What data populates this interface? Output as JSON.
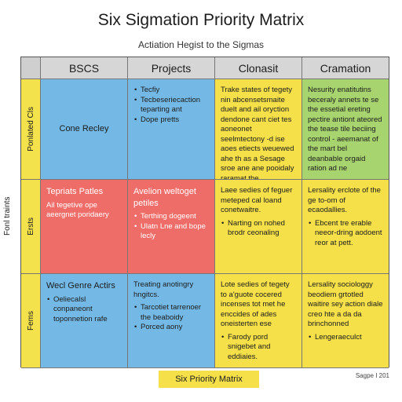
{
  "title": "Six Sigmation Priority Matrix",
  "subtitle": "Actiation Hegist to the Sigmas",
  "side_label": "Fonl traints",
  "columns": [
    "BSCS",
    "Projects",
    "Clonasit",
    "Cramation"
  ],
  "rows": [
    {
      "label": "Ponlated Cls",
      "cells": [
        {
          "color": "blue",
          "text": "Cone Recley",
          "bullets": []
        },
        {
          "color": "blue",
          "text": "",
          "bullets": [
            "Tecfiy",
            "Tecbeseriecaction teparting ant",
            "Dope pretts"
          ]
        },
        {
          "color": "yellow",
          "text": "Trake states of tegety nin abcensetsmaite duelt and ail oryction dendone cant ciet tes aoneonet seelmtectony -d ise aoes etiects weuewed ahe th as a Sesage sroe ane ane pooidaly raramat the monetyons.",
          "bullets": []
        },
        {
          "color": "green",
          "text": "Nesurity enatitutins beceraly annets te se the essetial ereting pectire antiont ateored the tease tile beciing control - aeemanat of the mart bel deanbable orgaid ration ad ne",
          "bullets": []
        }
      ]
    },
    {
      "label": "Ersts",
      "cells": [
        {
          "color": "red",
          "text": "Tepriats Patles",
          "sub": "Ail tegetive ope aeergnet poridaery",
          "bullets": []
        },
        {
          "color": "red",
          "text": "Avelion weltoget petiles",
          "bullets": [
            "Terthing dogeent",
            "Ulatn Lne and bope lecly"
          ]
        },
        {
          "color": "yellow",
          "text": "Laee sedies of feguer meteped cal loand conetwaitre.",
          "bullets": [
            "Narting on nohed brodr ceonaling"
          ]
        },
        {
          "color": "yellow",
          "text": "Lersality erclote of the ge to-om of ecaodallies.",
          "bullets": [
            "Ebcent tre erable neeor-dring aodoent reor at pett."
          ]
        }
      ]
    },
    {
      "label": "Fems",
      "cells": [
        {
          "color": "blue",
          "text": "Wecl Genre Actirs",
          "bullets": [
            "Oeliecalsl conpaneont toponnetion rafe"
          ]
        },
        {
          "color": "blue",
          "text": "Treating anotingry hngitcs.",
          "bullets": [
            "Tarcotiet tarrenoer the beaboidy",
            "Porced aony"
          ]
        },
        {
          "color": "yellow",
          "text": "Lote sedies of tegety to a'guote cocered incenses tot met he enccides of ades oneisterten ese",
          "bullets": [
            "Farody pord snigebet and eddiaies."
          ]
        },
        {
          "color": "yellow",
          "text": "Lersality sociologgy beodiem grtotled waitire sey action diale creo hte a da da brinchonned",
          "bullets": [
            "Lengeraeculct"
          ]
        }
      ]
    }
  ],
  "footer": "Six Priority Matrix",
  "note": "Sagpe I 201",
  "colors": {
    "blue": "#74b9e6",
    "red": "#ef6d68",
    "yellow": "#f6e04a",
    "green": "#a8d46f",
    "header": "#d6d6d6"
  }
}
